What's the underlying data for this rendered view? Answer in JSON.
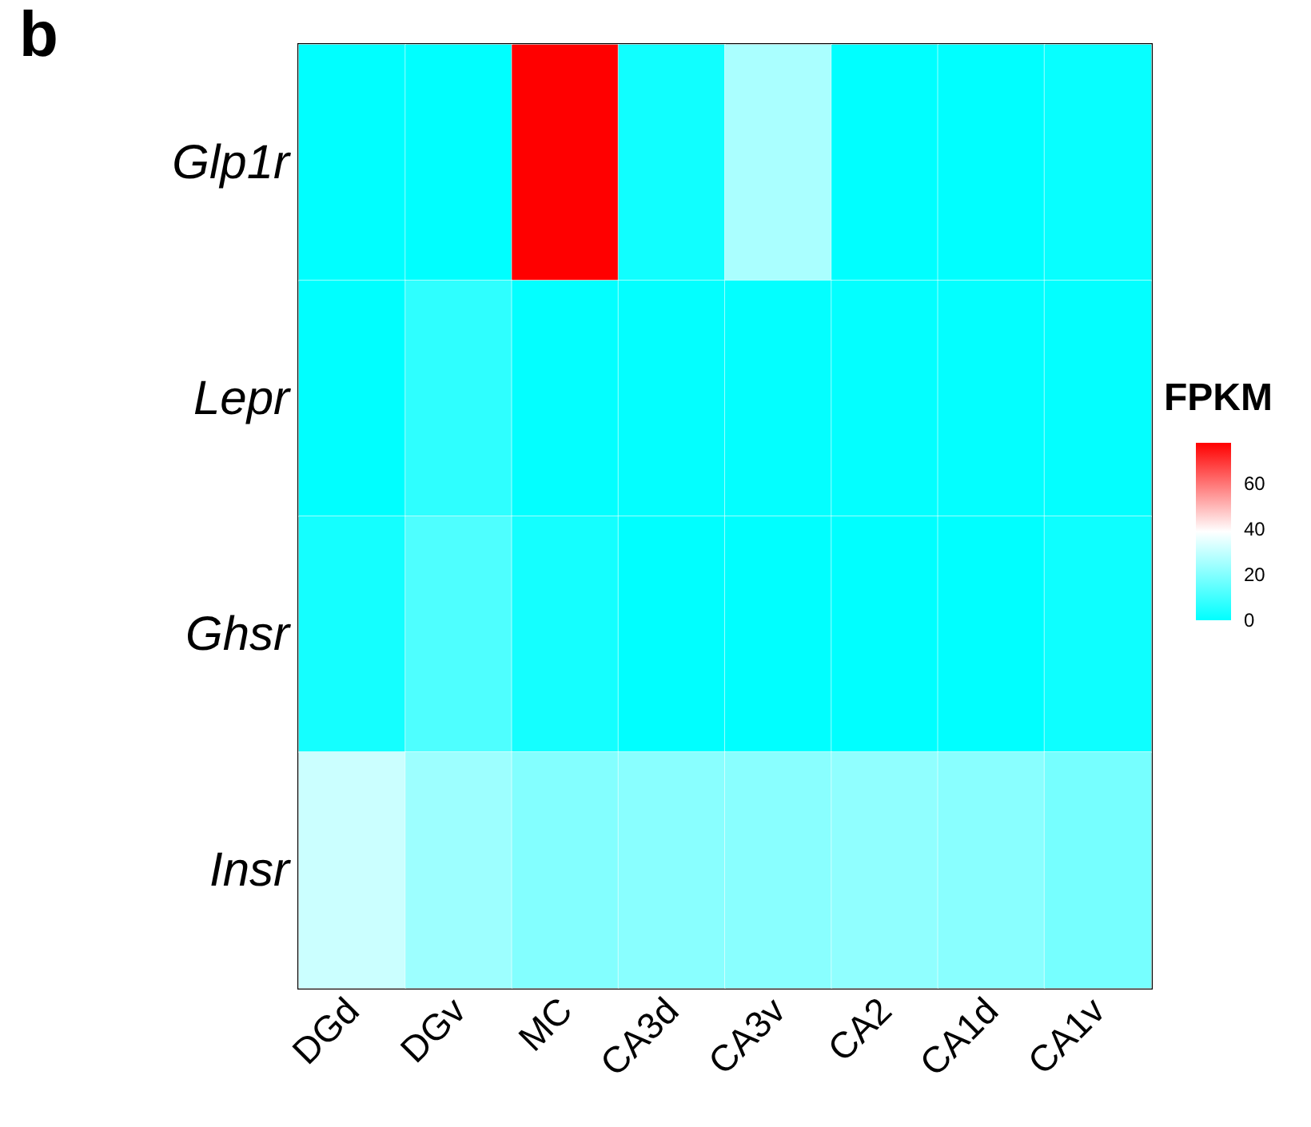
{
  "chart_data": {
    "type": "heatmap",
    "annotations": [
      "b"
    ],
    "clabel": "FPKM",
    "categories": [
      "DGd",
      "DGv",
      "MC",
      "CA3d",
      "CA3v",
      "CA2",
      "CA1d",
      "CA1v"
    ],
    "y_categories": [
      "Glp1r",
      "Lepr",
      "Ghsr",
      "Insr"
    ],
    "cells": [
      [
        0,
        0,
        78,
        2.5,
        26,
        0,
        0,
        1
      ],
      [
        0,
        7,
        0.5,
        0.5,
        0.5,
        0.5,
        0.5,
        0.5
      ],
      [
        3,
        12,
        3,
        0,
        0,
        0,
        0,
        2
      ],
      [
        31,
        24,
        20,
        21,
        21,
        22,
        21,
        18
      ]
    ],
    "clim": [
      0,
      78
    ],
    "cticks": [
      0,
      20,
      40,
      60
    ],
    "colors": [
      "#00ffff",
      "#ffffff",
      "#ff0000"
    ]
  }
}
